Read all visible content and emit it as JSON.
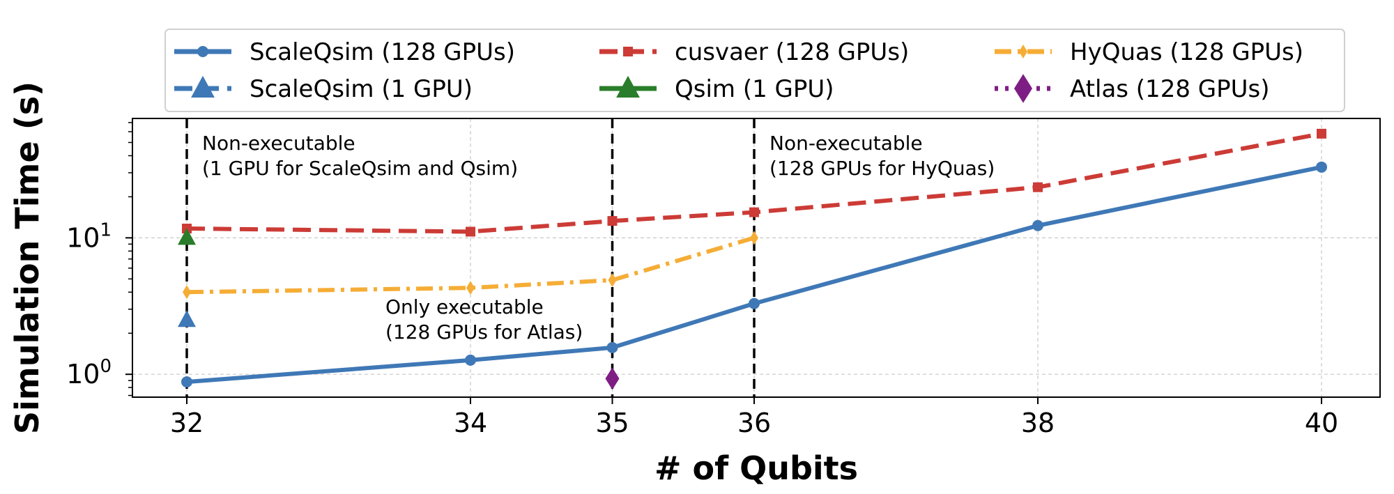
{
  "chart_data": {
    "type": "line",
    "title": "",
    "xlabel": "# of Qubits",
    "ylabel": "Simulation Time (s)",
    "x_ticks": [
      32,
      34,
      35,
      36,
      38,
      40
    ],
    "y_scale": "log",
    "ylim": [
      0.68,
      75
    ],
    "y_ticks": [
      {
        "value": 1,
        "base": "10",
        "exp": "0"
      },
      {
        "value": 10,
        "base": "10",
        "exp": "1"
      }
    ],
    "grid": true,
    "legend_position": "top",
    "series": [
      {
        "name": "ScaleQsim (128 GPUs)",
        "color": "#3f78b6",
        "style": "solid",
        "marker": "circle",
        "x": [
          32,
          34,
          35,
          36,
          38,
          40
        ],
        "y": [
          0.88,
          1.27,
          1.57,
          3.3,
          12.3,
          33
        ]
      },
      {
        "name": "cusvaer (128 GPUs)",
        "color": "#cc3b36",
        "style": "dashed",
        "marker": "square",
        "x": [
          32,
          34,
          35,
          36,
          38,
          40
        ],
        "y": [
          11.7,
          11.1,
          13.3,
          15.4,
          23.5,
          58
        ]
      },
      {
        "name": "HyQuas (128 GPUs)",
        "color": "#f5ad36",
        "style": "dashdot",
        "marker": "thin-diamond",
        "x": [
          32,
          34,
          35,
          36
        ],
        "y": [
          4.0,
          4.3,
          4.9,
          10.0
        ]
      },
      {
        "name": "ScaleQsim (1 GPU)",
        "color": "#3f78b6",
        "style": "dashed",
        "marker": "triangle",
        "x": [
          32
        ],
        "y": [
          2.5
        ]
      },
      {
        "name": "Qsim (1 GPU)",
        "color": "#2a7d2a",
        "style": "solid",
        "marker": "triangle",
        "x": [
          32
        ],
        "y": [
          10.0
        ]
      },
      {
        "name": "Atlas (128 GPUs)",
        "color": "#7e1e84",
        "style": "dotted",
        "marker": "diamond",
        "x": [
          35
        ],
        "y": [
          0.93
        ]
      }
    ],
    "vlines": [
      32,
      35,
      36
    ],
    "annotations": [
      {
        "lines": [
          "Non-executable",
          "(1 GPU for ScaleQsim and Qsim)"
        ]
      },
      {
        "lines": [
          "Only executable",
          "(128 GPUs for Atlas)"
        ]
      },
      {
        "lines": [
          "Non-executable",
          "(128 GPUs for HyQuas)"
        ]
      }
    ]
  }
}
